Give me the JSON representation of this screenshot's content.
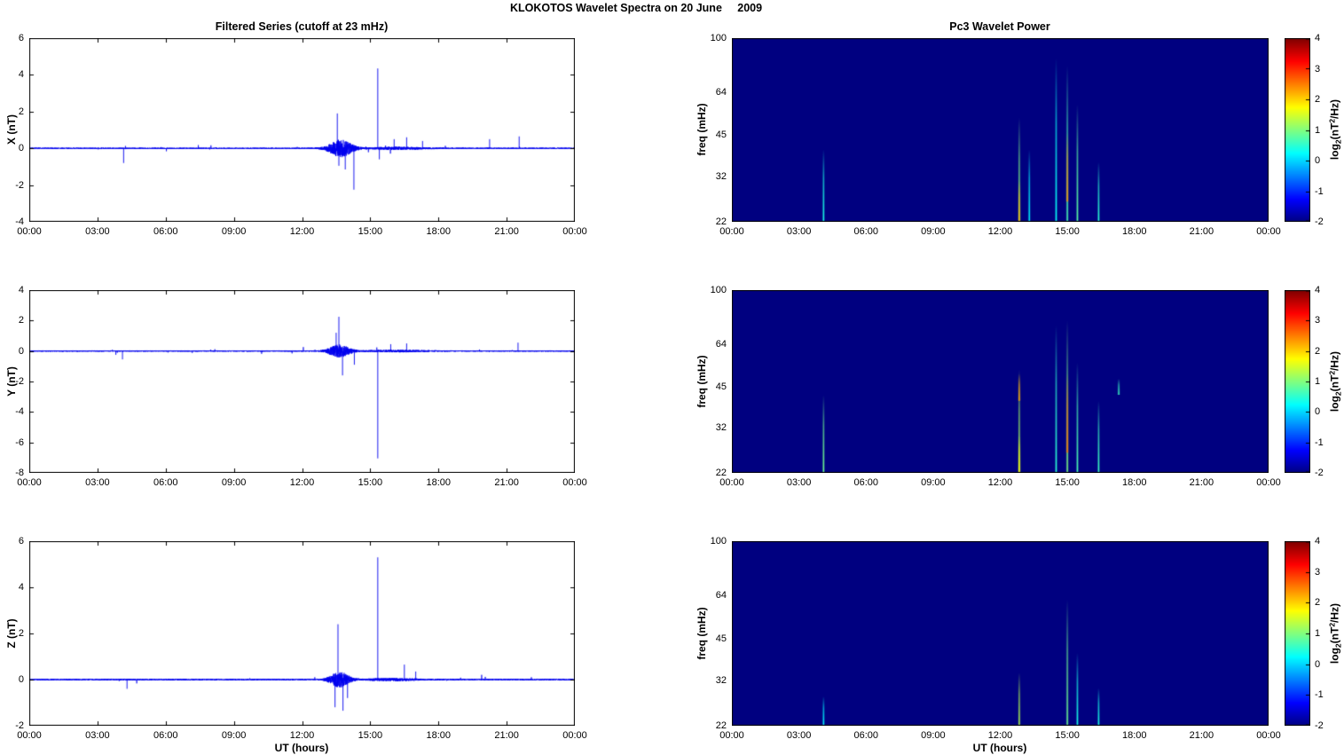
{
  "page": {
    "title": "KLOKOTOS Wavelet Spectra on 20 June     2009"
  },
  "labels": {
    "xlabel": "UT (hours)",
    "left_title": "Filtered Series (cutoff at 23 mHz)",
    "right_title": "Pc3 Wavelet Power",
    "freq_ylabel": "freq (mHz)",
    "colorbar_label": {
      "base": "log",
      "sub": "2",
      "mid": "(nT",
      "sup": "2",
      "end": "/Hz)"
    }
  },
  "axes": {
    "time_range_hours": [
      0,
      24
    ],
    "time_ticks_hours": [
      0,
      3,
      6,
      9,
      12,
      15,
      18,
      21,
      24
    ],
    "time_tick_labels": [
      "00:00",
      "03:00",
      "06:00",
      "09:00",
      "12:00",
      "15:00",
      "18:00",
      "21:00",
      "00:00"
    ],
    "freq_range_mhz": [
      22,
      100
    ],
    "freq_ticks_mhz": [
      22,
      32,
      45,
      64,
      100
    ],
    "freq_scale": "log",
    "colorbar_range": [
      -2,
      4
    ],
    "colorbar_ticks": [
      4,
      3,
      2,
      1,
      0,
      -1,
      -2
    ]
  },
  "colors": {
    "series_line": "#0000EE",
    "axis": "#000000",
    "plot_background": "#ffffff",
    "spectro_background": "#000084",
    "colormap": "jet"
  },
  "chart_data": [
    {
      "id": "x-filtered-series",
      "type": "line",
      "title": "Filtered Series (cutoff at 23 mHz)",
      "xlabel": "UT (hours)",
      "ylabel": "X (nT)",
      "ylim": [
        -4,
        6
      ],
      "yticks": [
        -4,
        -2,
        0,
        2,
        4,
        6
      ],
      "signal": {
        "baseline": 0,
        "quiet_noise": 0.035,
        "scatter_prob": 0.004,
        "bursts": [
          {
            "center": 13.7,
            "sigma": 0.55,
            "amp": 0.45
          },
          {
            "center": 16.2,
            "sigma": 1.3,
            "amp": 0.05
          }
        ],
        "spikes": [
          {
            "t": 4.15,
            "a": -0.8
          },
          {
            "t": 13.55,
            "a": 1.9
          },
          {
            "t": 13.62,
            "a": -0.95
          },
          {
            "t": 13.9,
            "a": -1.15
          },
          {
            "t": 14.28,
            "a": -2.25
          },
          {
            "t": 15.33,
            "a": 4.35
          },
          {
            "t": 15.4,
            "a": -0.6
          },
          {
            "t": 16.05,
            "a": 0.5
          },
          {
            "t": 16.6,
            "a": 0.6
          },
          {
            "t": 17.3,
            "a": 0.4
          },
          {
            "t": 20.25,
            "a": 0.5
          },
          {
            "t": 21.55,
            "a": 0.65
          }
        ]
      }
    },
    {
      "id": "y-filtered-series",
      "type": "line",
      "ylabel": "Y (nT)",
      "ylim": [
        -8,
        4
      ],
      "yticks": [
        -8,
        -6,
        -4,
        -2,
        0,
        2,
        4
      ],
      "signal": {
        "baseline": 0,
        "quiet_noise": 0.04,
        "scatter_prob": 0.004,
        "bursts": [
          {
            "center": 13.65,
            "sigma": 0.5,
            "amp": 0.4
          },
          {
            "center": 16.2,
            "sigma": 1.3,
            "amp": 0.05
          }
        ],
        "spikes": [
          {
            "t": 4.1,
            "a": -0.55
          },
          {
            "t": 13.5,
            "a": 1.2
          },
          {
            "t": 13.62,
            "a": 2.25
          },
          {
            "t": 13.78,
            "a": -1.6
          },
          {
            "t": 14.3,
            "a": -0.9
          },
          {
            "t": 15.33,
            "a": -7.05
          },
          {
            "t": 15.9,
            "a": 0.45
          },
          {
            "t": 16.6,
            "a": 0.5
          },
          {
            "t": 21.5,
            "a": 0.55
          }
        ]
      }
    },
    {
      "id": "z-filtered-series",
      "type": "line",
      "xlabel": "UT (hours)",
      "ylabel": "Z (nT)",
      "ylim": [
        -2,
        6
      ],
      "yticks": [
        -2,
        0,
        2,
        4,
        6
      ],
      "signal": {
        "baseline": 0,
        "quiet_noise": 0.03,
        "scatter_prob": 0.0035,
        "bursts": [
          {
            "center": 13.65,
            "sigma": 0.45,
            "amp": 0.32
          },
          {
            "center": 16.0,
            "sigma": 1.2,
            "amp": 0.04
          }
        ],
        "spikes": [
          {
            "t": 4.3,
            "a": -0.4
          },
          {
            "t": 13.45,
            "a": -1.2
          },
          {
            "t": 13.58,
            "a": 2.4
          },
          {
            "t": 13.8,
            "a": -1.35
          },
          {
            "t": 14.0,
            "a": -0.8
          },
          {
            "t": 15.33,
            "a": 5.3
          },
          {
            "t": 16.5,
            "a": 0.65
          },
          {
            "t": 17.0,
            "a": 0.35
          }
        ]
      }
    },
    {
      "id": "x-wavelet-power",
      "type": "heatmap",
      "title": "Pc3 Wavelet Power",
      "ylabel": "freq (mHz)",
      "freq_lim": [
        22,
        100
      ],
      "freq_ticks": [
        22,
        32,
        45,
        64,
        100
      ],
      "scale": "log",
      "background_value": -2,
      "colorbar": {
        "range": [
          -2,
          4
        ],
        "ticks": [
          4,
          3,
          2,
          1,
          0,
          -1,
          -2
        ]
      },
      "streaks": [
        {
          "t": 4.1,
          "f1": 22,
          "f2": 40,
          "v": 0.4
        },
        {
          "t": 12.85,
          "f1": 22,
          "f2": 52,
          "v": 1.0
        },
        {
          "t": 12.85,
          "f1": 22,
          "f2": 31,
          "v": 2.2
        },
        {
          "t": 13.3,
          "f1": 22,
          "f2": 40,
          "v": 0.2
        },
        {
          "t": 14.5,
          "f1": 22,
          "f2": 85,
          "v": 0.3
        },
        {
          "t": 15.0,
          "f1": 22,
          "f2": 80,
          "v": 0.7
        },
        {
          "t": 15.0,
          "f1": 26,
          "f2": 46,
          "v": 2.4
        },
        {
          "t": 15.45,
          "f1": 22,
          "f2": 58,
          "v": 0.8
        },
        {
          "t": 16.4,
          "f1": 22,
          "f2": 36,
          "v": 0.5
        }
      ]
    },
    {
      "id": "y-wavelet-power",
      "type": "heatmap",
      "ylabel": "freq (mHz)",
      "freq_lim": [
        22,
        100
      ],
      "freq_ticks": [
        22,
        32,
        45,
        64,
        100
      ],
      "scale": "log",
      "background_value": -2,
      "colorbar": {
        "range": [
          -2,
          4
        ],
        "ticks": [
          4,
          3,
          2,
          1,
          0,
          -1,
          -2
        ]
      },
      "streaks": [
        {
          "t": 4.1,
          "f1": 22,
          "f2": 42,
          "v": 0.9
        },
        {
          "t": 12.85,
          "f1": 22,
          "f2": 52,
          "v": 1.2
        },
        {
          "t": 12.85,
          "f1": 40,
          "f2": 50,
          "v": 2.3
        },
        {
          "t": 12.85,
          "f1": 22,
          "f2": 30,
          "v": 1.8
        },
        {
          "t": 14.5,
          "f1": 22,
          "f2": 75,
          "v": 0.5
        },
        {
          "t": 15.0,
          "f1": 22,
          "f2": 78,
          "v": 1.0
        },
        {
          "t": 15.0,
          "f1": 26,
          "f2": 50,
          "v": 2.6
        },
        {
          "t": 15.45,
          "f1": 22,
          "f2": 55,
          "v": 0.7
        },
        {
          "t": 16.4,
          "f1": 22,
          "f2": 40,
          "v": 0.6
        },
        {
          "t": 17.3,
          "f1": 42,
          "f2": 48,
          "v": 0.6
        }
      ]
    },
    {
      "id": "z-wavelet-power",
      "type": "heatmap",
      "xlabel": "UT (hours)",
      "ylabel": "freq (mHz)",
      "freq_lim": [
        22,
        100
      ],
      "freq_ticks": [
        22,
        32,
        45,
        64,
        100
      ],
      "scale": "log",
      "background_value": -2,
      "colorbar": {
        "range": [
          -2,
          4
        ],
        "ticks": [
          4,
          3,
          2,
          1,
          0,
          -1,
          -2
        ]
      },
      "streaks": [
        {
          "t": 4.1,
          "f1": 22,
          "f2": 28,
          "v": 0.2
        },
        {
          "t": 12.85,
          "f1": 22,
          "f2": 34,
          "v": 1.3
        },
        {
          "t": 15.0,
          "f1": 22,
          "f2": 62,
          "v": 0.9
        },
        {
          "t": 15.45,
          "f1": 22,
          "f2": 40,
          "v": 0.4
        },
        {
          "t": 16.4,
          "f1": 22,
          "f2": 30,
          "v": 0.4
        }
      ]
    }
  ]
}
